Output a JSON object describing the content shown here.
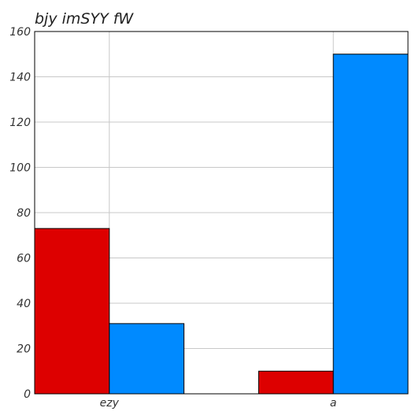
{
  "chart_data": {
    "type": "bar",
    "title": "bjy imSYY fW",
    "xlabel": "",
    "ylabel": "",
    "categories": [
      "ezy",
      "a"
    ],
    "series": [
      {
        "values": [
          73,
          10
        ],
        "color": "#dd0000"
      },
      {
        "values": [
          31,
          150
        ],
        "color": "#008aff"
      }
    ],
    "ylim": [
      0,
      160
    ],
    "yticks": [
      0,
      20,
      40,
      60,
      80,
      100,
      120,
      140,
      160
    ],
    "grid": true,
    "legend": "none"
  }
}
